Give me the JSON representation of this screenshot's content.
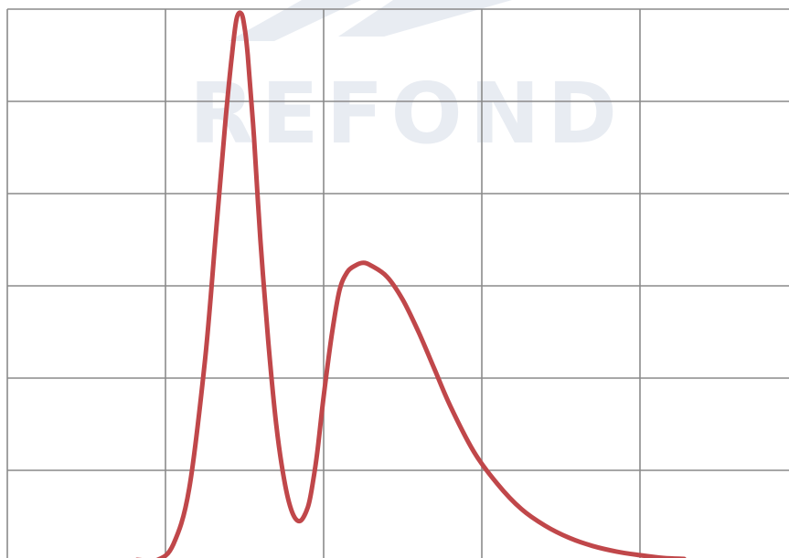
{
  "watermark": {
    "text": "REFOND",
    "color": "#cfd6e3"
  },
  "chart_data": {
    "type": "line",
    "title": "",
    "xlabel": "",
    "ylabel": "",
    "grid": true,
    "xlim": [
      0,
      5
    ],
    "ylim": [
      0,
      6
    ],
    "series": [
      {
        "color": "#c0474a",
        "x": [
          0.82,
          0.95,
          1.05,
          1.15,
          1.25,
          1.32,
          1.38,
          1.42,
          1.45,
          1.48,
          1.5,
          1.52,
          1.56,
          1.6,
          1.65,
          1.7,
          1.75,
          1.8,
          1.85,
          1.9,
          1.93,
          1.96,
          2.0,
          2.05,
          2.1,
          2.15,
          2.2,
          2.25,
          2.3,
          2.4,
          2.5,
          2.6,
          2.7,
          2.8,
          2.95,
          3.1,
          3.25,
          3.4,
          3.55,
          3.7,
          3.85,
          4.0,
          4.15,
          4.28
        ],
        "values": [
          0.03,
          0.03,
          0.2,
          0.8,
          2.2,
          3.6,
          4.8,
          5.5,
          5.9,
          5.95,
          5.8,
          5.5,
          4.6,
          3.5,
          2.4,
          1.5,
          0.9,
          0.55,
          0.45,
          0.6,
          0.85,
          1.2,
          1.8,
          2.45,
          2.95,
          3.15,
          3.22,
          3.25,
          3.22,
          3.1,
          2.85,
          2.5,
          2.1,
          1.7,
          1.2,
          0.85,
          0.58,
          0.4,
          0.27,
          0.18,
          0.12,
          0.08,
          0.05,
          0.04
        ]
      }
    ]
  }
}
